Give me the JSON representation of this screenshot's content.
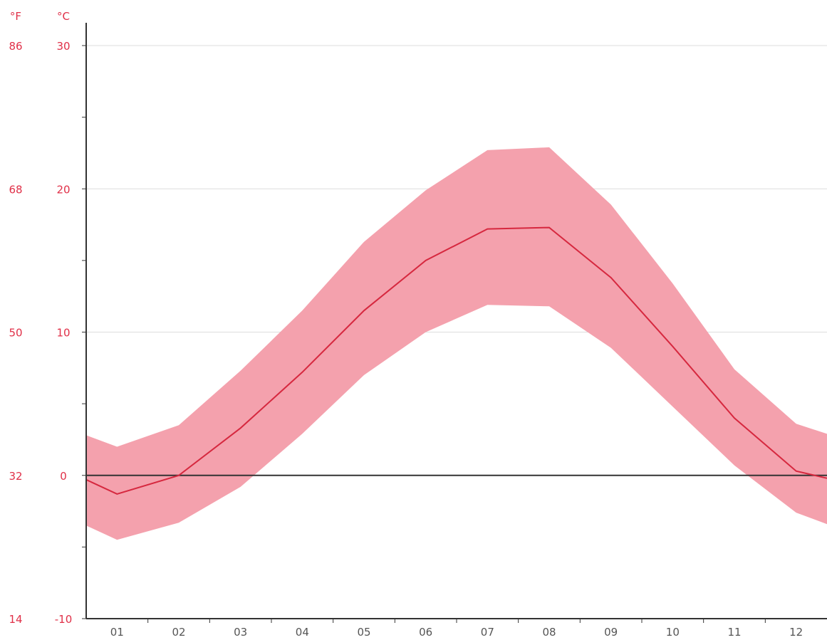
{
  "chart_data": {
    "type": "area",
    "title": "",
    "xlabel": "",
    "ylabel": "",
    "x": [
      "01",
      "02",
      "03",
      "04",
      "05",
      "06",
      "07",
      "08",
      "09",
      "10",
      "11",
      "12"
    ],
    "y_units": {
      "left": "°F",
      "right": "°C"
    },
    "ylim": [
      -10,
      30
    ],
    "y_ticks_c": [
      "30",
      "20",
      "10",
      "0",
      "-10"
    ],
    "y_ticks_f": [
      "86",
      "68",
      "50",
      "32",
      "14"
    ],
    "grid": true,
    "series": [
      {
        "values": [
          -1.3,
          0.0,
          3.3,
          7.2,
          11.5,
          15.0,
          17.2,
          17.3,
          13.8,
          9.0,
          4.0,
          0.3
        ]
      }
    ],
    "band": {
      "upper": [
        2.0,
        3.5,
        7.3,
        11.5,
        16.3,
        19.9,
        22.7,
        22.9,
        18.9,
        13.4,
        7.4,
        3.6
      ],
      "lower": [
        -4.5,
        -3.3,
        -0.8,
        2.9,
        7.0,
        10.0,
        11.9,
        11.8,
        8.9,
        4.8,
        0.7,
        -2.6
      ]
    },
    "band_edge": {
      "left_upper": 2.8,
      "left_lower": -3.5,
      "right_upper": 2.9,
      "right_lower": -3.4
    },
    "colors": {
      "band": "#f4a1ad",
      "line": "#d6283f",
      "axis": "#333333",
      "grid": "#dddddd",
      "temperature_labels": "#e03048",
      "month_labels": "#555555"
    }
  }
}
